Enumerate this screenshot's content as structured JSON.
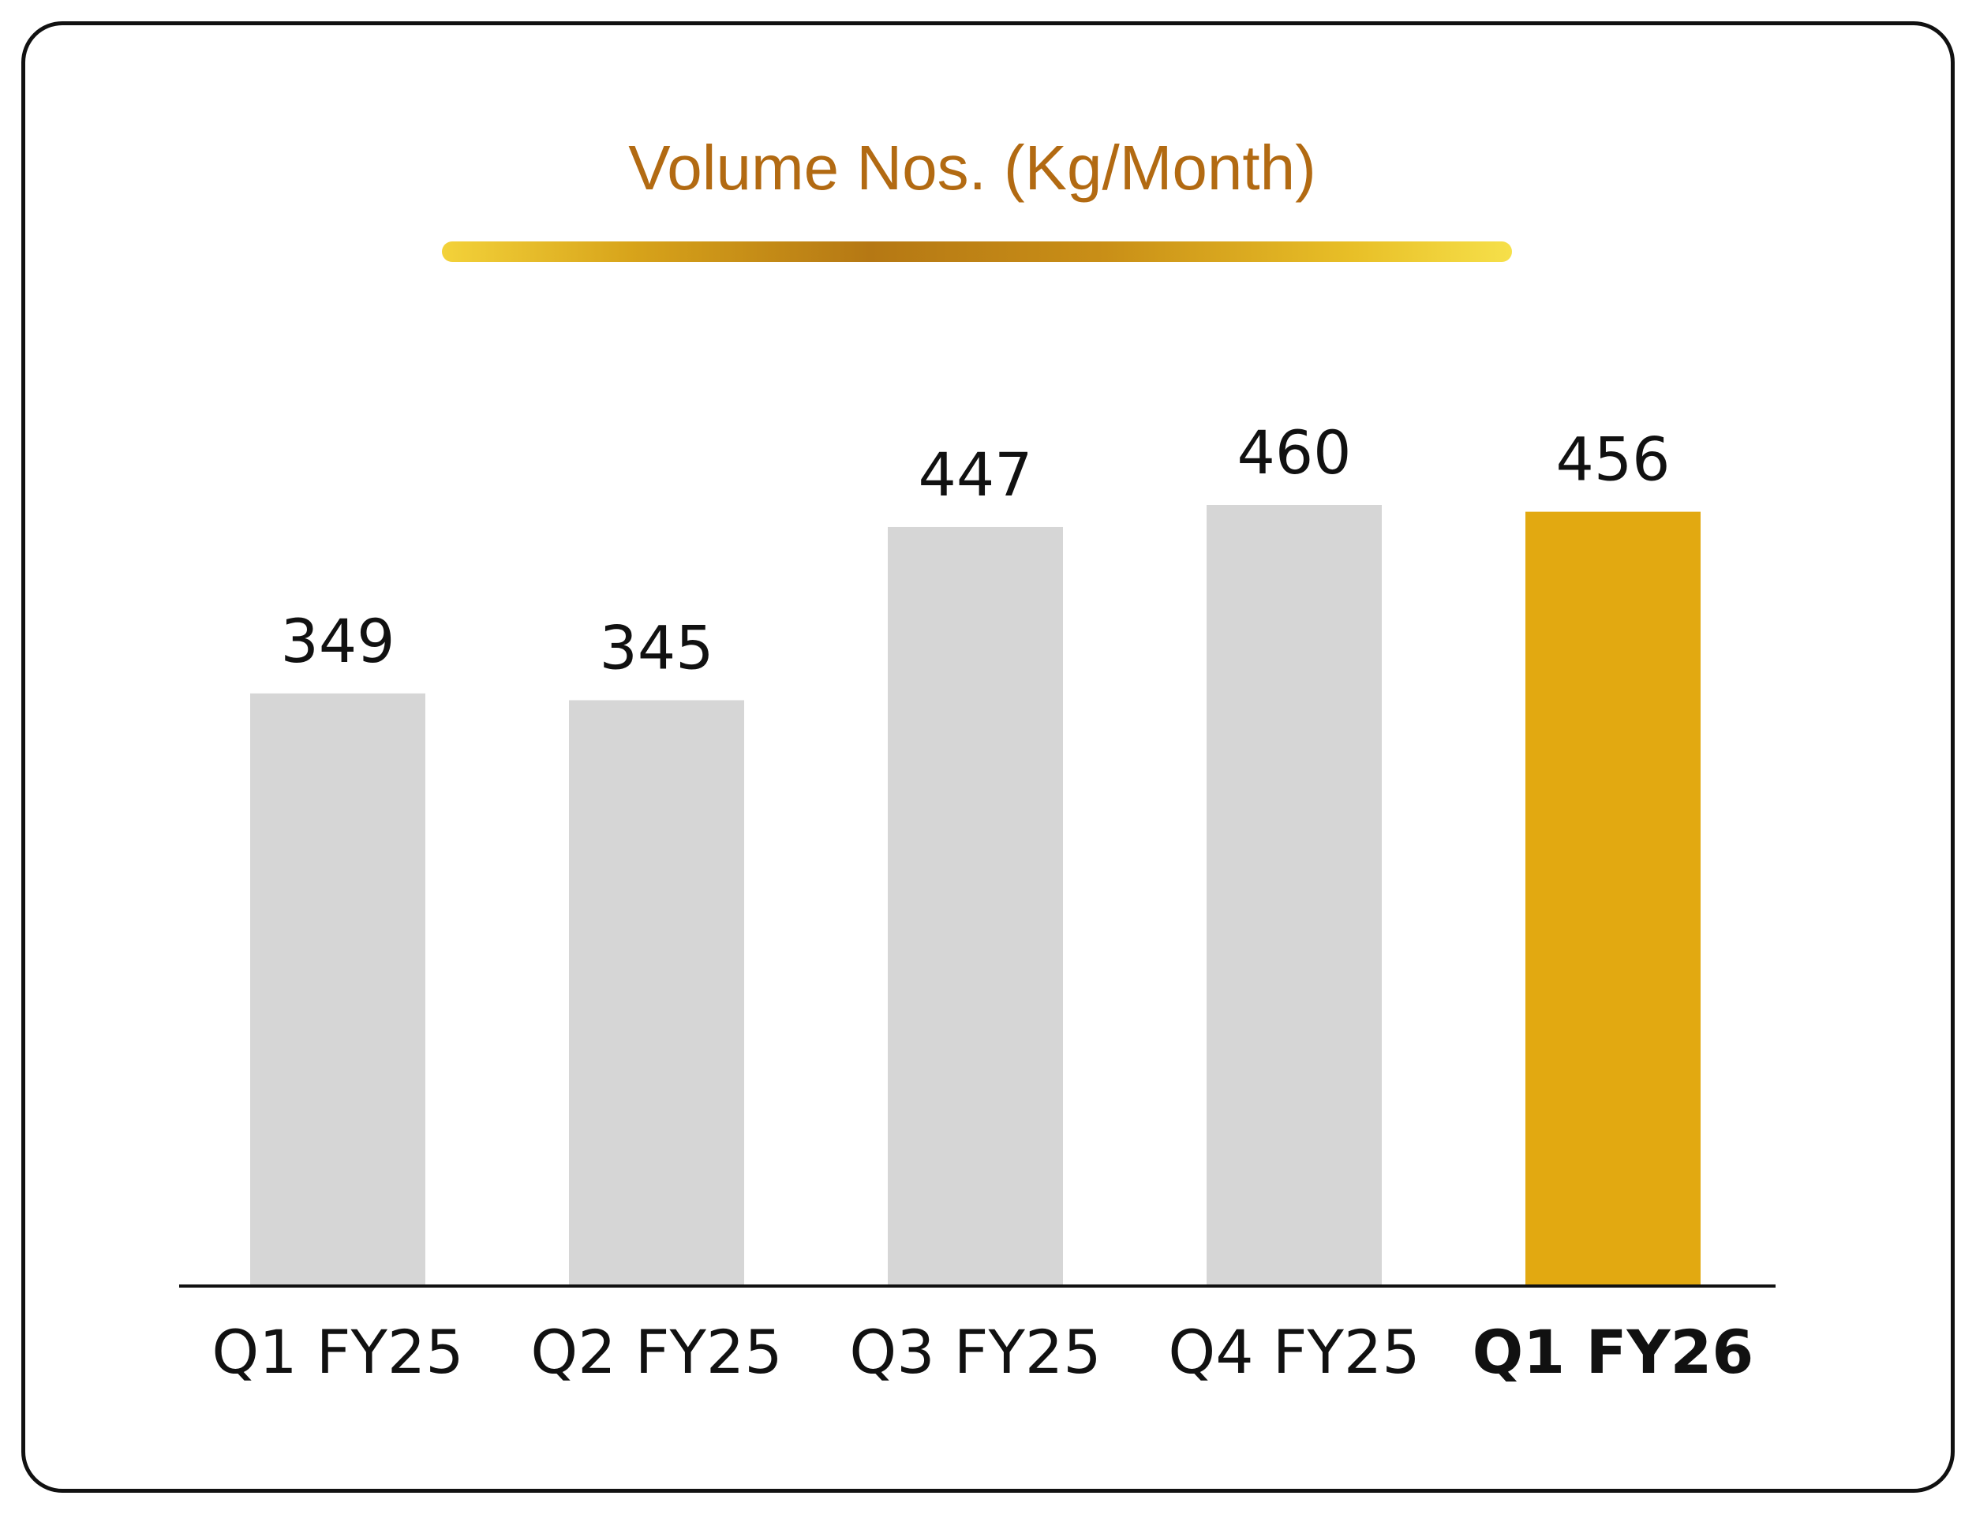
{
  "chart_data": {
    "type": "bar",
    "title": "Volume Nos. (Kg/Month)",
    "categories": [
      "Q1 FY25",
      "Q2 FY25",
      "Q3 FY25",
      "Q4 FY25",
      "Q1 FY26"
    ],
    "values": [
      349,
      345,
      447,
      460,
      456
    ],
    "value_labels": [
      "349",
      "345",
      "447",
      "460",
      "456"
    ],
    "highlight_index": 4,
    "xlabel": "",
    "ylabel": "",
    "ylim": [
      0,
      460
    ],
    "grid": false,
    "legend": "none",
    "colors": {
      "bar": "#d6d6d6",
      "highlight": "#e2a911",
      "title": "#b26a12",
      "axis": "#111111"
    }
  }
}
